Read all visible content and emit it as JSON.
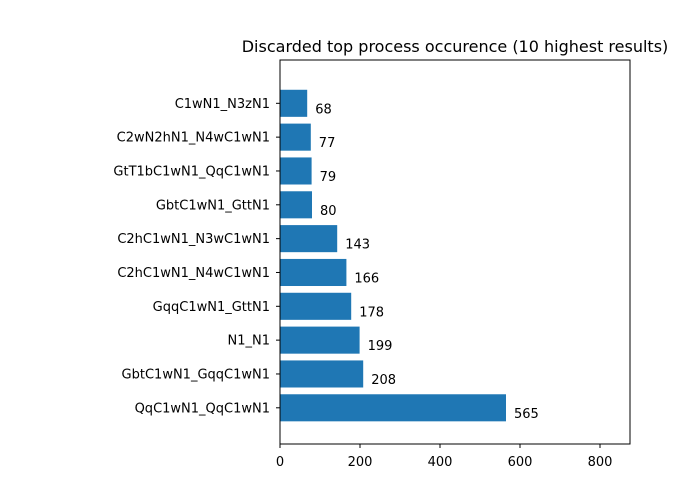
{
  "chart_data": {
    "type": "bar",
    "orientation": "horizontal",
    "title": "Discarded top process occurence (10 highest results)",
    "xlabel": "",
    "ylabel": "",
    "categories": [
      "QqC1wN1_QqC1wN1",
      "GbtC1wN1_GqqC1wN1",
      "N1_N1",
      "GqqC1wN1_GttN1",
      "C2hC1wN1_N4wC1wN1",
      "C2hC1wN1_N3wC1wN1",
      "GbtC1wN1_GttN1",
      "GtT1bC1wN1_QqC1wN1",
      "C2wN2hN1_N4wC1wN1",
      "C1wN1_N3zN1"
    ],
    "values": [
      565,
      208,
      199,
      178,
      166,
      143,
      80,
      79,
      77,
      68
    ],
    "xlim": [
      0,
      875
    ],
    "xticks": [
      0,
      200,
      400,
      600,
      800
    ],
    "grid": false,
    "bar_color": "#1f77b4"
  }
}
